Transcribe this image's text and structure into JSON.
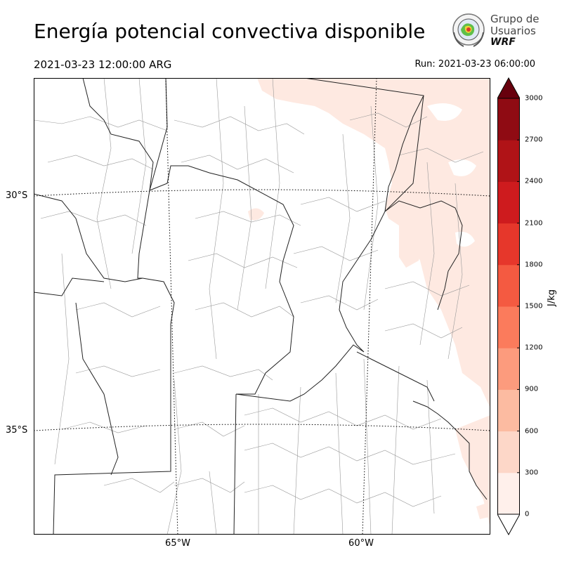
{
  "header": {
    "title": "Energía potencial convectiva disponible",
    "valid_time": "2021-03-23 12:00:00 ARG",
    "run": "Run: 2021-03-23 06:00:00"
  },
  "logo": {
    "line1": "Grupo de",
    "line2": "Usuarios",
    "line3": "WRF",
    "icon": "wrf-emblem-icon"
  },
  "map": {
    "region": "central Argentina",
    "field": "CAPE",
    "lat_labels": [
      "30°S",
      "35°S"
    ],
    "lon_labels": [
      "65°W",
      "60°W"
    ],
    "gridlines": "dotted",
    "notes": "Light shading (0–300 J/kg) over north-east and south-east of domain; rest below 0-level shading"
  },
  "colorbar": {
    "units": "J/kg",
    "levels": [
      0,
      300,
      600,
      900,
      1200,
      1500,
      1800,
      2100,
      2400,
      2700,
      3000
    ],
    "tick_labels": [
      "0",
      "300",
      "600",
      "900",
      "1200",
      "1500",
      "1800",
      "2100",
      "2400",
      "2700",
      "3000"
    ],
    "colors": [
      "#fff0eb",
      "#fdd7c8",
      "#fcbba1",
      "#fc9b7d",
      "#fb7b5c",
      "#f45a41",
      "#e6372b",
      "#ce1b1e",
      "#b01317",
      "#8f0b13"
    ],
    "extend_color": "#67000d"
  }
}
